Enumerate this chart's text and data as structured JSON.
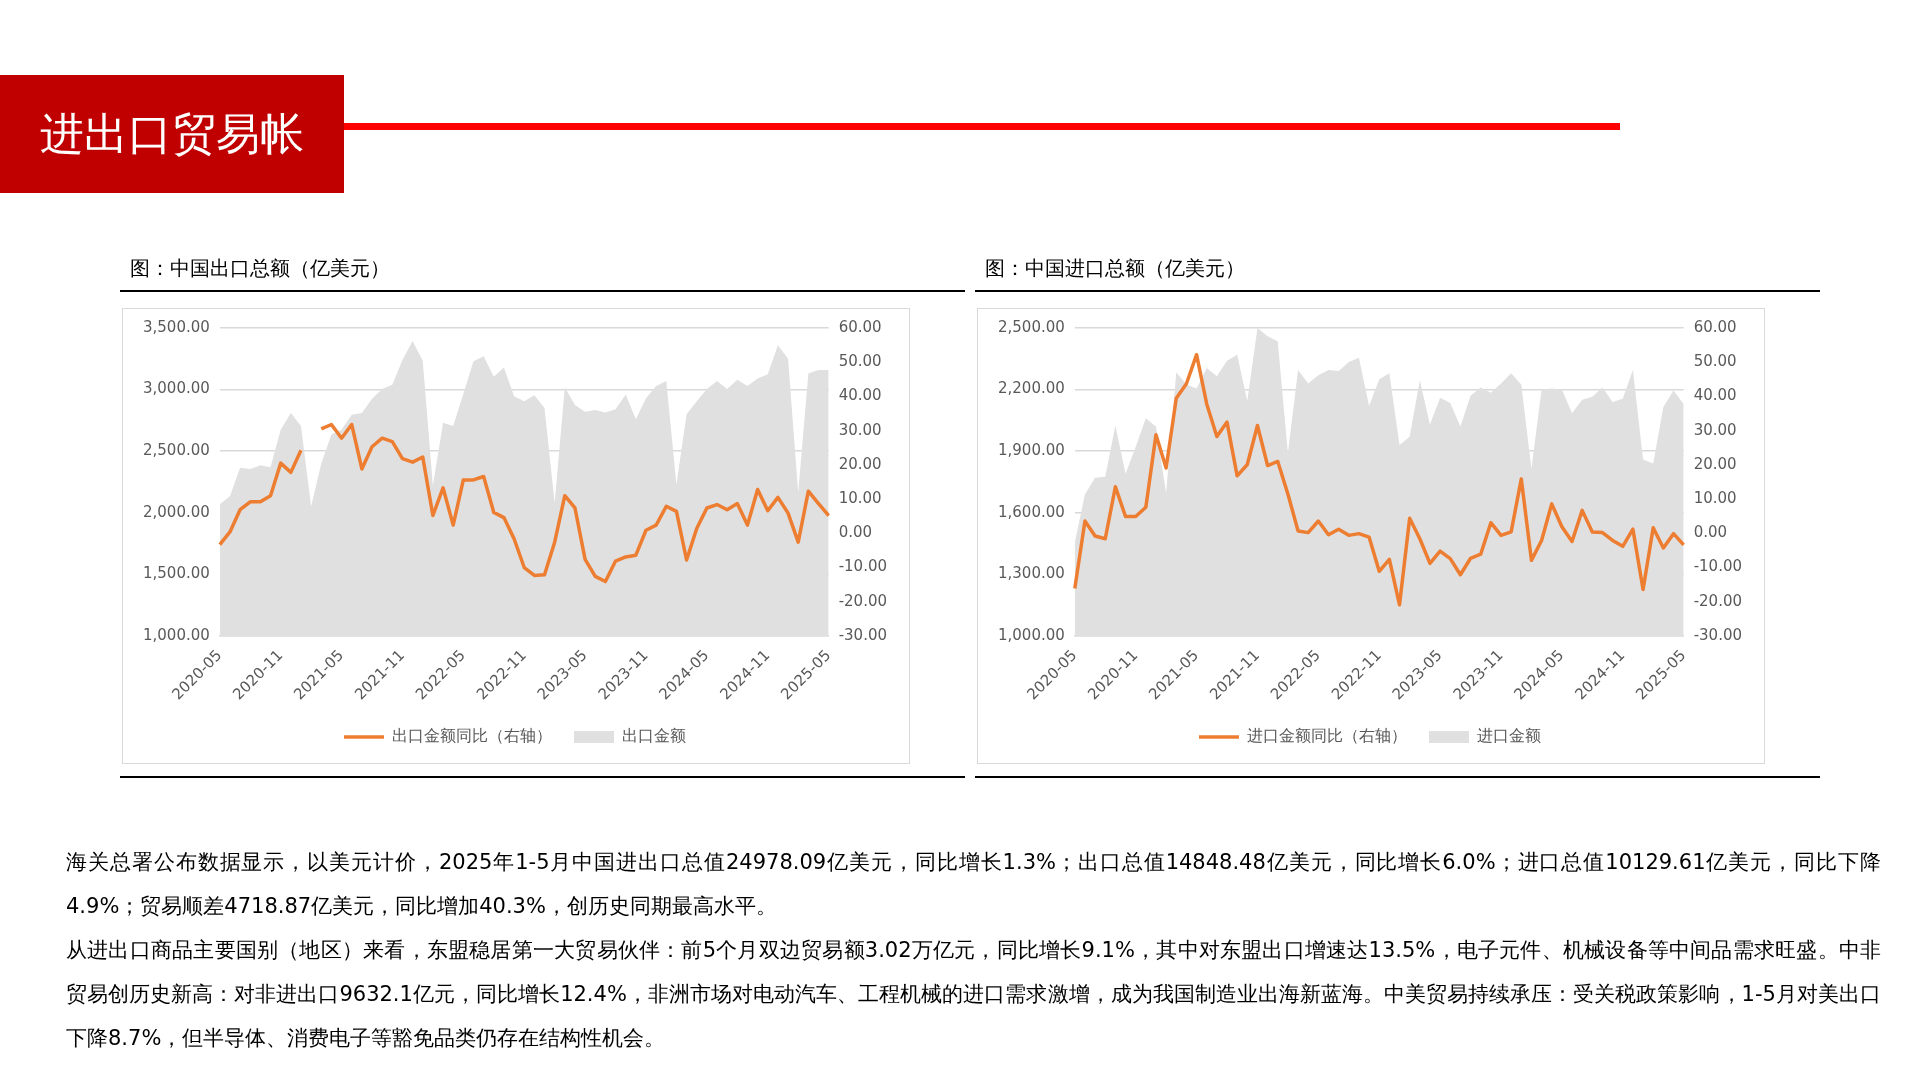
{
  "chart_data": [
    {
      "type": "other",
      "title": "进出口贸易帐"
    },
    {
      "type": "line",
      "title": "图：中国出口总额（亿美元）",
      "categories": [
        "2020-05",
        null,
        null,
        null,
        null,
        null,
        "2020-11",
        null,
        null,
        null,
        null,
        null,
        "2021-05",
        null,
        null,
        null,
        null,
        null,
        "2021-11",
        null,
        null,
        null,
        null,
        null,
        "2022-05",
        null,
        null,
        null,
        null,
        null,
        "2022-11",
        null,
        null,
        null,
        null,
        null,
        "2023-05",
        null,
        null,
        null,
        null,
        null,
        "2023-11",
        null,
        null,
        null,
        null,
        null,
        "2024-05",
        null,
        null,
        null,
        null,
        null,
        "2024-11",
        null,
        null,
        null,
        null,
        null,
        "2025-05"
      ],
      "series": [
        {
          "name": "出口金额",
          "type": "area",
          "color": "#e0e0e0",
          "values": [
            2070,
            2135,
            2365,
            2355,
            2385,
            2370,
            2675,
            2810,
            2705,
            2050,
            2400,
            2635,
            2675,
            2795,
            2810,
            2925,
            3005,
            3040,
            3240,
            3395,
            3235,
            2220,
            2730,
            2705,
            2965,
            3230,
            3270,
            3105,
            3180,
            2945,
            2905,
            2955,
            2850,
            2080,
            3020,
            2875,
            2820,
            2835,
            2815,
            2840,
            2960,
            2760,
            2930,
            3030,
            3070,
            2230,
            2800,
            2905,
            3005,
            3070,
            3005,
            3080,
            3030,
            3090,
            3125,
            3360,
            3250,
            2165,
            3130,
            3160,
            3160
          ]
        },
        {
          "name": "出口金额同比（右轴）",
          "type": "line",
          "axis": "y2",
          "color": "#ed7d31",
          "values": [
            -3.3,
            0.4,
            6.9,
            9.2,
            9.2,
            11.0,
            20.5,
            17.8,
            24.3,
            null,
            30.5,
            31.8,
            27.8,
            31.8,
            18.8,
            25.3,
            27.8,
            26.8,
            21.8,
            20.8,
            22.3,
            5.2,
            13.3,
            2.4,
            15.6,
            15.6,
            16.6,
            6.1,
            4.6,
            -1.6,
            -10.0,
            -12.3,
            -12.1,
            -2.6,
            11.0,
            7.4,
            -7.6,
            -12.6,
            -14.1,
            -8.1,
            -6.9,
            -6.4,
            0.9,
            2.4,
            7.9,
            6.4,
            -7.8,
            1.4,
            7.4,
            8.4,
            6.9,
            8.7,
            2.4,
            12.8,
            6.6,
            10.5,
            5.9,
            -2.6,
            12.3,
            8.7,
            5.2
          ]
        }
      ],
      "ylim": [
        1000,
        3500
      ],
      "yticks": [
        {
          "value": 1000,
          "label": "1,000.00"
        },
        {
          "value": 1500,
          "label": "1,500.00"
        },
        {
          "value": 2000,
          "label": "2,000.00"
        },
        {
          "value": 2500,
          "label": "2,500.00"
        },
        {
          "value": 3000,
          "label": "3,000.00"
        },
        {
          "value": 3500,
          "label": "3,500.00"
        }
      ],
      "y2lim": [
        -30,
        60
      ],
      "y2ticks": [
        {
          "value": -30,
          "label": "-30.00"
        },
        {
          "value": -20,
          "label": "-20.00"
        },
        {
          "value": -10,
          "label": "-10.00"
        },
        {
          "value": 0,
          "label": "0.00"
        },
        {
          "value": 10,
          "label": "10.00"
        },
        {
          "value": 20,
          "label": "20.00"
        },
        {
          "value": 30,
          "label": "30.00"
        },
        {
          "value": 40,
          "label": "40.00"
        },
        {
          "value": 50,
          "label": "50.00"
        },
        {
          "value": 60,
          "label": "60.00"
        }
      ],
      "grid": "y",
      "legend": "bottom"
    },
    {
      "type": "line",
      "title": "图：中国进口总额（亿美元）",
      "categories": [
        "2020-05",
        null,
        null,
        null,
        null,
        null,
        "2020-11",
        null,
        null,
        null,
        null,
        null,
        "2021-05",
        null,
        null,
        null,
        null,
        null,
        "2021-11",
        null,
        null,
        null,
        null,
        null,
        "2022-05",
        null,
        null,
        null,
        null,
        null,
        "2022-11",
        null,
        null,
        null,
        null,
        null,
        "2023-05",
        null,
        null,
        null,
        null,
        null,
        "2023-11",
        null,
        null,
        null,
        null,
        null,
        "2024-05",
        null,
        null,
        null,
        null,
        null,
        "2024-11",
        null,
        null,
        null,
        null,
        null,
        "2025-05"
      ],
      "series": [
        {
          "name": "进口金额",
          "type": "area",
          "color": "#e0e0e0",
          "values": [
            1455,
            1690,
            1770,
            1775,
            2025,
            1790,
            1920,
            2060,
            2020,
            1695,
            2285,
            2225,
            2205,
            2305,
            2265,
            2340,
            2370,
            2145,
            2500,
            2460,
            2435,
            1890,
            2295,
            2230,
            2270,
            2295,
            2290,
            2335,
            2355,
            2120,
            2250,
            2280,
            1930,
            1970,
            2245,
            2030,
            2160,
            2135,
            2020,
            2170,
            2210,
            2185,
            2230,
            2280,
            2225,
            1815,
            2200,
            2205,
            2200,
            2085,
            2150,
            2165,
            2210,
            2140,
            2155,
            2295,
            1860,
            1840,
            2115,
            2195,
            2130
          ]
        },
        {
          "name": "进口金额同比（右轴）",
          "type": "line",
          "axis": "y2",
          "color": "#ed7d31",
          "values": [
            -16.1,
            3.6,
            -0.8,
            -1.6,
            13.6,
            4.9,
            4.9,
            7.6,
            28.8,
            19.1,
            39.5,
            43.7,
            52.2,
            37.8,
            28.3,
            32.5,
            16.8,
            20.1,
            31.5,
            19.8,
            21.0,
            11.5,
            0.7,
            0.2,
            3.6,
            -0.4,
            1.2,
            -0.6,
            -0.1,
            -1.1,
            -11.1,
            -7.6,
            -20.9,
            4.4,
            -1.6,
            -8.8,
            -5.2,
            -7.4,
            -12.1,
            -7.3,
            -6.1,
            3.1,
            -0.6,
            0.4,
            15.9,
            -7.9,
            -2.1,
            8.6,
            1.9,
            -2.4,
            6.7,
            0.4,
            0.2,
            -2.1,
            -3.8,
            1.2,
            -16.4,
            1.6,
            -4.3,
            -0.1,
            -3.4
          ]
        }
      ],
      "ylim": [
        1000,
        2500
      ],
      "yticks": [
        {
          "value": 1000,
          "label": "1,000.00"
        },
        {
          "value": 1300,
          "label": "1,300.00"
        },
        {
          "value": 1600,
          "label": "1,600.00"
        },
        {
          "value": 1900,
          "label": "1,900.00"
        },
        {
          "value": 2200,
          "label": "2,200.00"
        },
        {
          "value": 2500,
          "label": "2,500.00"
        }
      ],
      "y2lim": [
        -30,
        60
      ],
      "y2ticks": [
        {
          "value": -30,
          "label": "-30.00"
        },
        {
          "value": -20,
          "label": "-20.00"
        },
        {
          "value": -10,
          "label": "-10.00"
        },
        {
          "value": 0,
          "label": "0.00"
        },
        {
          "value": 10,
          "label": "10.00"
        },
        {
          "value": 20,
          "label": "20.00"
        },
        {
          "value": 30,
          "label": "30.00"
        },
        {
          "value": 40,
          "label": "40.00"
        },
        {
          "value": 50,
          "label": "50.00"
        },
        {
          "value": 60,
          "label": "60.00"
        }
      ],
      "grid": "y",
      "legend": "bottom"
    },
    {
      "type": "other",
      "annotations": [
        "海关总署公布数据显示，以美元计价，2025年1-5月中国进出口总值24978.09亿美元，同比增长1.3%；出口总值14848.48亿美元，同比增长6.0%；进口总值10129.61亿美元，同比下降4.9%；贸易顺差4718.87亿美元，同比增加40.3%，创历史同期最高水平。",
        "从进出口商品主要国别（地区）来看，东盟稳居第一大贸易伙伴：前5个月双边贸易额3.02万亿元，同比增长9.1%，其中对东盟出口增速达13.5%，电子元件、机械设备等中间品需求旺盛。中非贸易创历史新高：对非进出口9632.1亿元，同比增长12.4%，非洲市场对电动汽车、工程机械的进口需求激增，成为我国制造业出海新蓝海。中美贸易持续承压：受关税政策影响，1-5月对美出口下降8.7%，但半导体、消费电子等豁免品类仍存在结构性机会。"
      ]
    }
  ]
}
